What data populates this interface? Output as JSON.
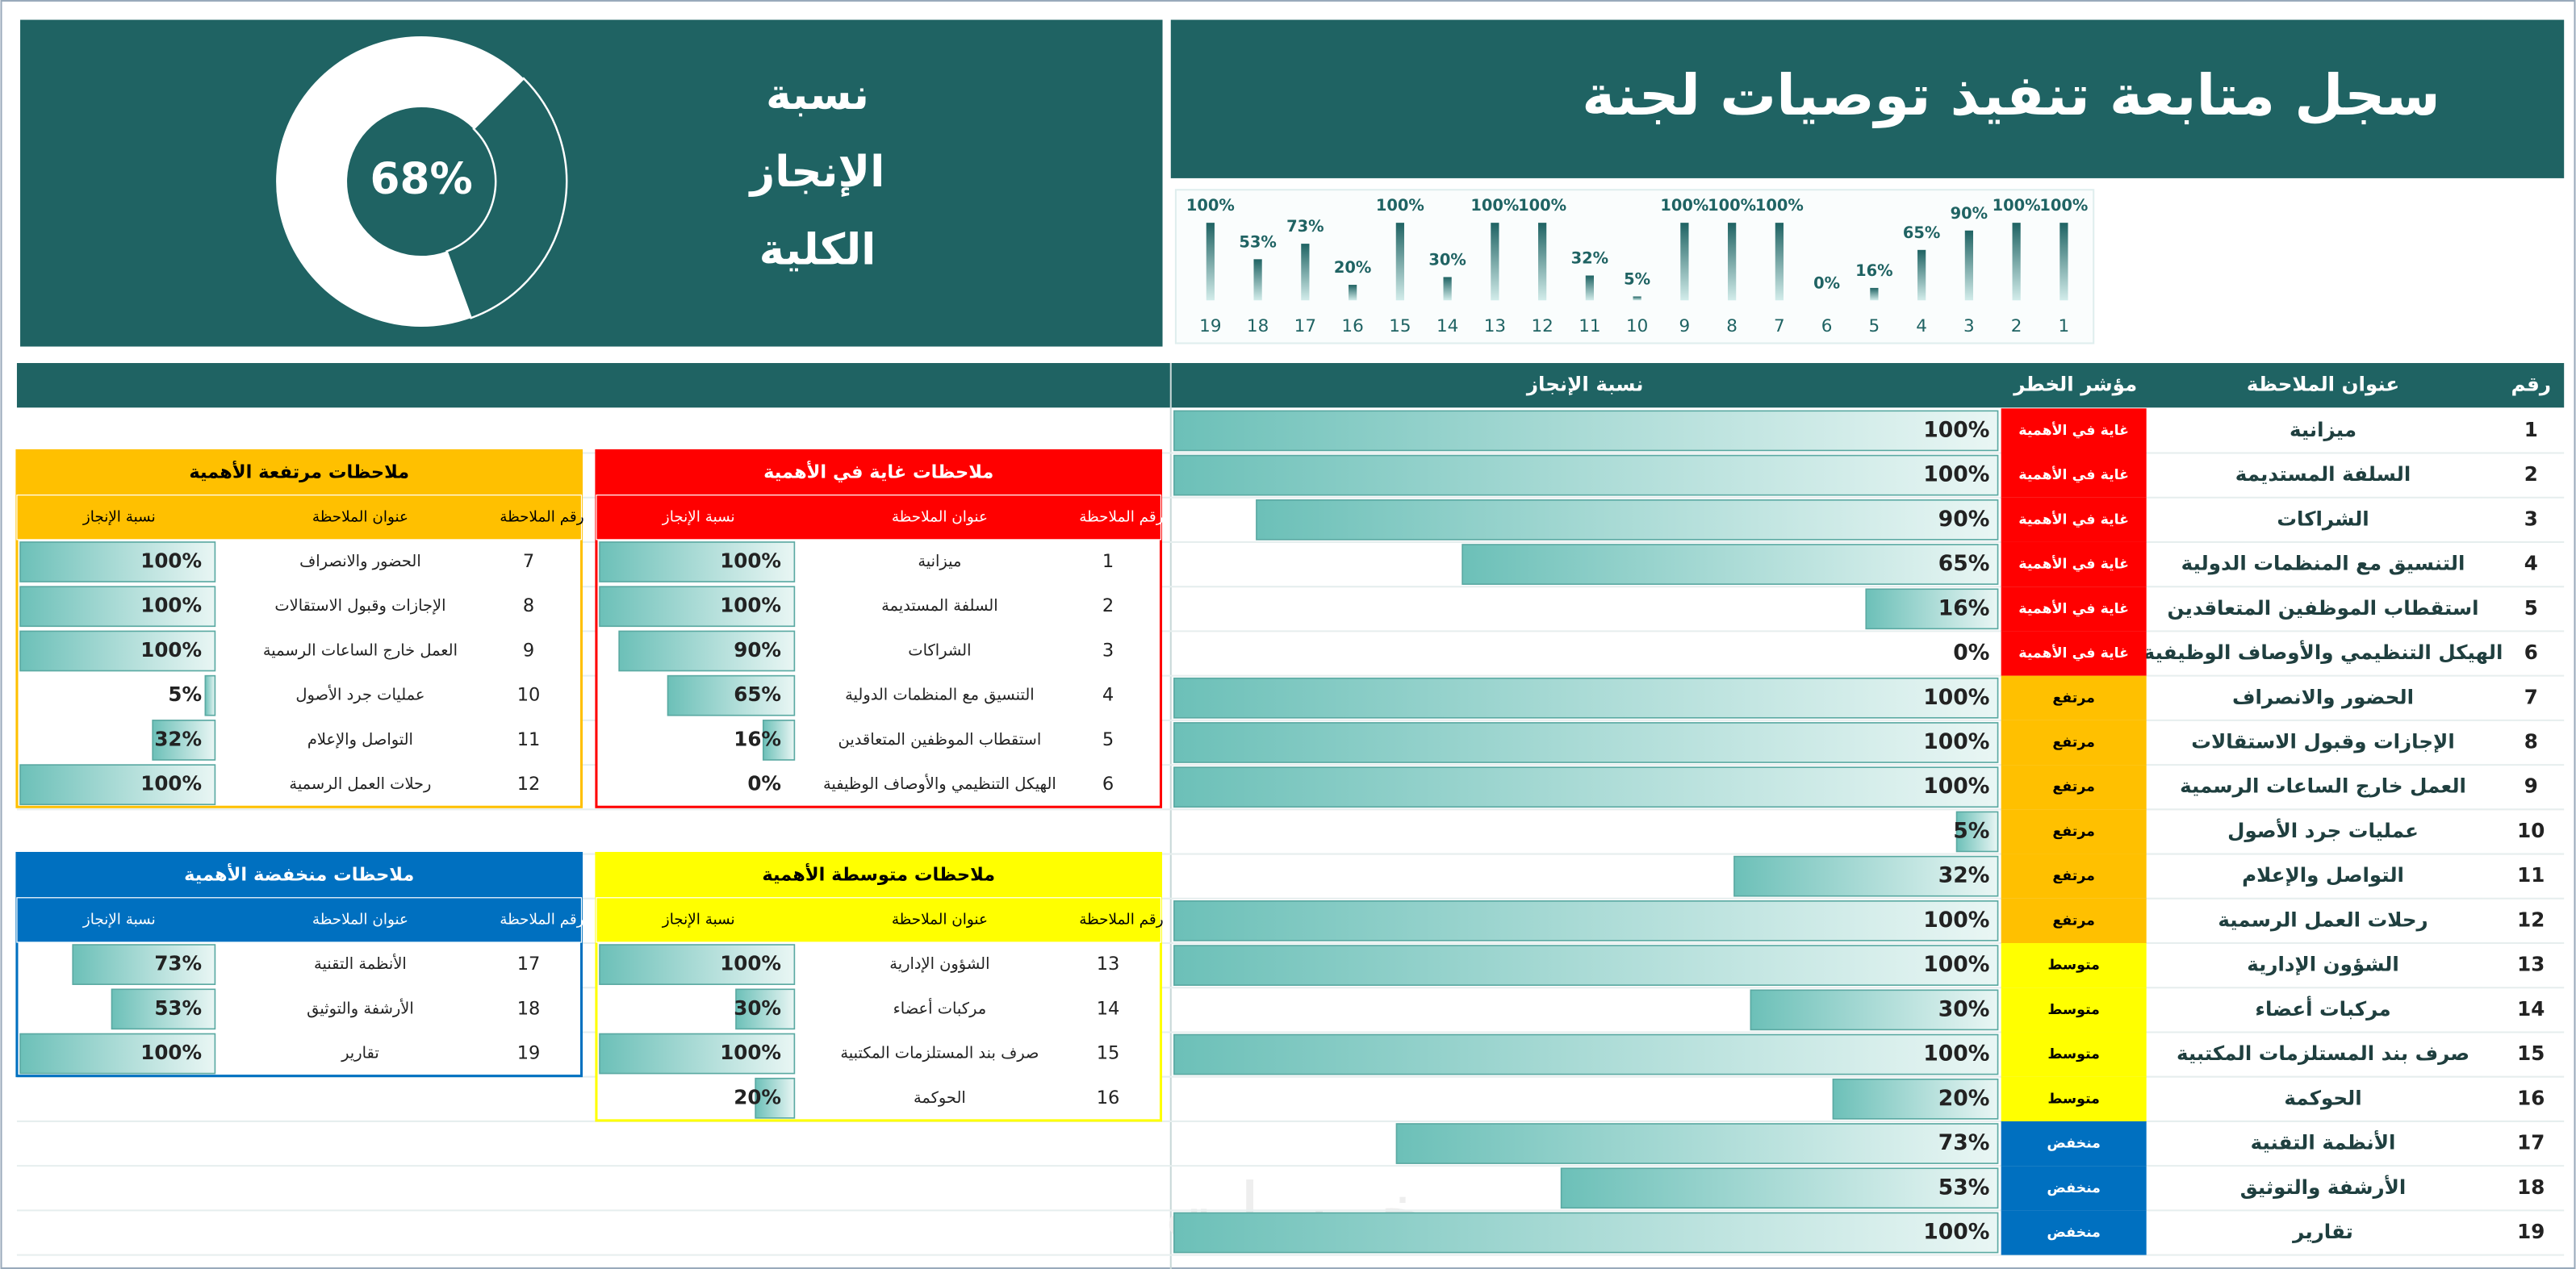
{
  "header": {
    "title": "سجل متابعة تنفيذ توصيات لجنة"
  },
  "chart_data": [
    {
      "type": "gauge",
      "title": "نسبة الإنجاز الكلية",
      "value": 68,
      "value_label": "68%",
      "ylim": [
        0,
        100
      ],
      "color": "#ffffff"
    },
    {
      "type": "bar",
      "categories": [
        "19",
        "18",
        "17",
        "16",
        "15",
        "14",
        "13",
        "12",
        "11",
        "10",
        "9",
        "8",
        "7",
        "6",
        "5",
        "4",
        "3",
        "2",
        "1"
      ],
      "values": [
        100,
        53,
        73,
        20,
        100,
        30,
        100,
        100,
        32,
        5,
        100,
        100,
        100,
        0,
        16,
        65,
        90,
        100,
        100
      ],
      "value_labels": [
        "100%",
        "53%",
        "73%",
        "20%",
        "100%",
        "30%",
        "100%",
        "100%",
        "32%",
        "5%",
        "100%",
        "100%",
        "100%",
        "0%",
        "16%",
        "65%",
        "90%",
        "100%",
        "100%"
      ],
      "ylim": [
        0,
        100
      ],
      "color": "#1f6363"
    }
  ],
  "table": {
    "columns": [
      "رقم",
      "عنوان الملاحظة",
      "مؤشر الخطر",
      "نسبة الإنجاز"
    ],
    "xlim": [
      0,
      100
    ],
    "rows": [
      {
        "no": 1,
        "title": "ميزانية",
        "risk": "غاية في الأهمية",
        "color": "#ff0000",
        "text_color": "#ffffff",
        "pct": 100,
        "pct_label": "100%"
      },
      {
        "no": 2,
        "title": "السلفة المستديمة",
        "risk": "غاية في الأهمية",
        "color": "#ff0000",
        "text_color": "#ffffff",
        "pct": 100,
        "pct_label": "100%"
      },
      {
        "no": 3,
        "title": "الشراكات",
        "risk": "غاية في الأهمية",
        "color": "#ff0000",
        "text_color": "#ffffff",
        "pct": 90,
        "pct_label": "90%"
      },
      {
        "no": 4,
        "title": "التنسيق مع المنظمات الدولية",
        "risk": "غاية في الأهمية",
        "color": "#ff0000",
        "text_color": "#ffffff",
        "pct": 65,
        "pct_label": "65%"
      },
      {
        "no": 5,
        "title": "استقطاب الموظفين المتعاقدين",
        "risk": "غاية في الأهمية",
        "color": "#ff0000",
        "text_color": "#ffffff",
        "pct": 16,
        "pct_label": "16%"
      },
      {
        "no": 6,
        "title": "الهيكل التنظيمي والأوصاف الوظيفية",
        "risk": "غاية في الأهمية",
        "color": "#ff0000",
        "text_color": "#ffffff",
        "pct": 0,
        "pct_label": "0%"
      },
      {
        "no": 7,
        "title": "الحضور والانصراف",
        "risk": "مرتفع",
        "color": "#ffc000",
        "text_color": "#000000",
        "pct": 100,
        "pct_label": "100%"
      },
      {
        "no": 8,
        "title": "الإجازات وقبول الاستقالات",
        "risk": "مرتفع",
        "color": "#ffc000",
        "text_color": "#000000",
        "pct": 100,
        "pct_label": "100%"
      },
      {
        "no": 9,
        "title": "العمل خارج الساعات الرسمية",
        "risk": "مرتفع",
        "color": "#ffc000",
        "text_color": "#000000",
        "pct": 100,
        "pct_label": "100%"
      },
      {
        "no": 10,
        "title": "عمليات جرد الأصول",
        "risk": "مرتفع",
        "color": "#ffc000",
        "text_color": "#000000",
        "pct": 5,
        "pct_label": "5%"
      },
      {
        "no": 11,
        "title": "التواصل والإعلام",
        "risk": "مرتفع",
        "color": "#ffc000",
        "text_color": "#000000",
        "pct": 32,
        "pct_label": "32%"
      },
      {
        "no": 12,
        "title": "رحلات العمل الرسمية",
        "risk": "مرتفع",
        "color": "#ffc000",
        "text_color": "#000000",
        "pct": 100,
        "pct_label": "100%"
      },
      {
        "no": 13,
        "title": "الشؤون الإدارية",
        "risk": "متوسط",
        "color": "#ffff00",
        "text_color": "#000000",
        "pct": 100,
        "pct_label": "100%"
      },
      {
        "no": 14,
        "title": "مركبات أعضاء",
        "risk": "متوسط",
        "color": "#ffff00",
        "text_color": "#000000",
        "pct": 30,
        "pct_label": "30%"
      },
      {
        "no": 15,
        "title": "صرف بند المستلزمات المكتبية",
        "risk": "متوسط",
        "color": "#ffff00",
        "text_color": "#000000",
        "pct": 100,
        "pct_label": "100%"
      },
      {
        "no": 16,
        "title": "الحوكمة",
        "risk": "متوسط",
        "color": "#ffff00",
        "text_color": "#000000",
        "pct": 20,
        "pct_label": "20%"
      },
      {
        "no": 17,
        "title": "الأنظمة التقنية",
        "risk": "منخفض",
        "color": "#0070c0",
        "text_color": "#ffffff",
        "pct": 73,
        "pct_label": "73%"
      },
      {
        "no": 18,
        "title": "الأرشفة والتوثيق",
        "risk": "منخفض",
        "color": "#0070c0",
        "text_color": "#ffffff",
        "pct": 53,
        "pct_label": "53%"
      },
      {
        "no": 19,
        "title": "تقارير",
        "risk": "منخفض",
        "color": "#0070c0",
        "text_color": "#ffffff",
        "pct": 100,
        "pct_label": "100%"
      }
    ]
  },
  "groups": [
    {
      "title": "ملاحظات مرتفعة الأهمية",
      "color": "#ffc000",
      "text_color": "#000000",
      "columns": [
        "رقم الملاحظة",
        "عنوان الملاحظة",
        "نسبة الإنجاز"
      ],
      "rows": [
        {
          "no": 7,
          "title": "الحضور والانصراف",
          "pct": 100,
          "pct_label": "100%"
        },
        {
          "no": 8,
          "title": "الإجازات وقبول الاستقالات",
          "pct": 100,
          "pct_label": "100%"
        },
        {
          "no": 9,
          "title": "العمل خارج الساعات الرسمية",
          "pct": 100,
          "pct_label": "100%"
        },
        {
          "no": 10,
          "title": "عمليات جرد الأصول",
          "pct": 5,
          "pct_label": "5%"
        },
        {
          "no": 11,
          "title": "التواصل والإعلام",
          "pct": 32,
          "pct_label": "32%"
        },
        {
          "no": 12,
          "title": "رحلات العمل الرسمية",
          "pct": 100,
          "pct_label": "100%"
        }
      ]
    },
    {
      "title": "ملاحظات غاية في الأهمية",
      "color": "#ff0000",
      "text_color": "#ffffff",
      "columns": [
        "رقم الملاحظة",
        "عنوان الملاحظة",
        "نسبة الإنجاز"
      ],
      "rows": [
        {
          "no": 1,
          "title": "ميزانية",
          "pct": 100,
          "pct_label": "100%"
        },
        {
          "no": 2,
          "title": "السلفة المستديمة",
          "pct": 100,
          "pct_label": "100%"
        },
        {
          "no": 3,
          "title": "الشراكات",
          "pct": 90,
          "pct_label": "90%"
        },
        {
          "no": 4,
          "title": "التنسيق مع المنظمات الدولية",
          "pct": 65,
          "pct_label": "65%"
        },
        {
          "no": 5,
          "title": "استقطاب الموظفين المتعاقدين",
          "pct": 16,
          "pct_label": "16%"
        },
        {
          "no": 6,
          "title": "الهيكل التنظيمي والأوصاف الوظيفية",
          "pct": 0,
          "pct_label": "0%"
        }
      ]
    },
    {
      "title": "ملاحظات منخفضة الأهمية",
      "color": "#0070c0",
      "text_color": "#ffffff",
      "columns": [
        "رقم الملاحظة",
        "عنوان الملاحظة",
        "نسبة الإنجاز"
      ],
      "rows": [
        {
          "no": 17,
          "title": "الأنظمة التقنية",
          "pct": 73,
          "pct_label": "73%"
        },
        {
          "no": 18,
          "title": "الأرشفة والتوثيق",
          "pct": 53,
          "pct_label": "53%"
        },
        {
          "no": 19,
          "title": "تقارير",
          "pct": 100,
          "pct_label": "100%"
        }
      ]
    },
    {
      "title": "ملاحظات متوسطة الأهمية",
      "color": "#ffff00",
      "text_color": "#000000",
      "columns": [
        "رقم الملاحظة",
        "عنوان الملاحظة",
        "نسبة الإنجاز"
      ],
      "rows": [
        {
          "no": 13,
          "title": "الشؤون الإدارية",
          "pct": 100,
          "pct_label": "100%"
        },
        {
          "no": 14,
          "title": "مركبات أعضاء",
          "pct": 30,
          "pct_label": "30%"
        },
        {
          "no": 15,
          "title": "صرف بند المستلزمات المكتبية",
          "pct": 100,
          "pct_label": "100%"
        },
        {
          "no": 16,
          "title": "الحوكمة",
          "pct": 20,
          "pct_label": "20%"
        }
      ]
    }
  ],
  "watermark": "خمسات"
}
